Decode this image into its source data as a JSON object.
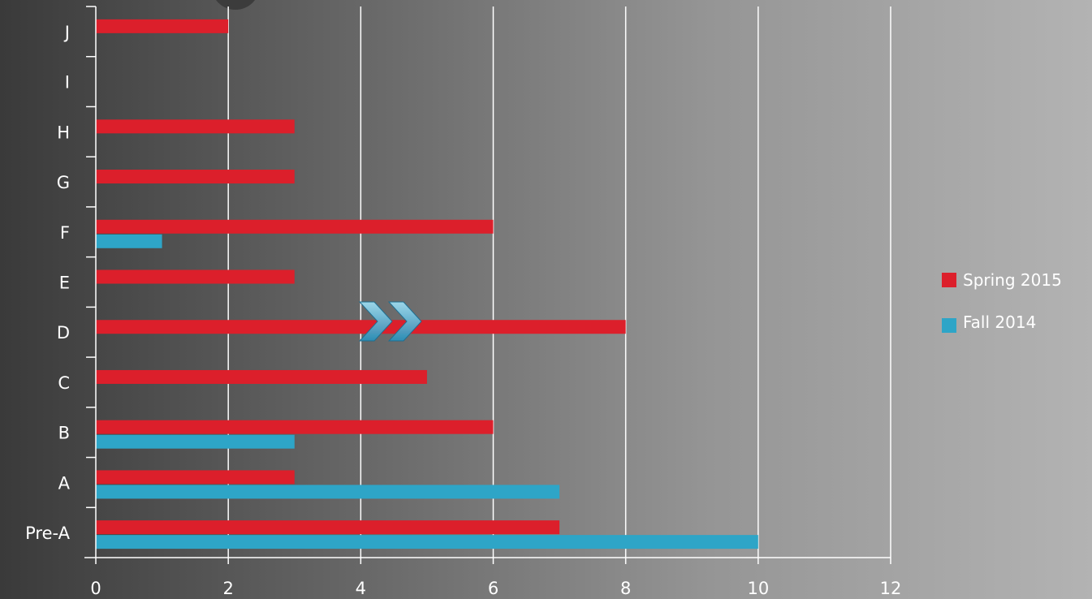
{
  "colors": {
    "spring": "#dc1f2b",
    "fall": "#2ea5c7",
    "axis": "#ffffff",
    "grid": "#ffffff"
  },
  "decorations": [
    "chevron-arrows-icon"
  ],
  "chart_data": {
    "type": "bar",
    "orientation": "horizontal",
    "categories": [
      "Pre-A",
      "A",
      "B",
      "C",
      "D",
      "E",
      "F",
      "G",
      "H",
      "I",
      "J"
    ],
    "series": [
      {
        "name": "Spring 2015",
        "values": [
          7,
          3,
          6,
          5,
          8,
          3,
          6,
          3,
          3,
          0,
          2
        ]
      },
      {
        "name": "Fall 2014",
        "values": [
          10,
          7,
          3,
          0,
          0,
          0,
          1,
          0,
          0,
          0,
          0
        ]
      }
    ],
    "xlim": [
      0,
      12
    ],
    "xticks": [
      0,
      2,
      4,
      6,
      8,
      10,
      12
    ],
    "legend": {
      "position": "right",
      "entries": [
        "Spring 2015",
        "Fall 2014"
      ]
    },
    "grid": true
  }
}
